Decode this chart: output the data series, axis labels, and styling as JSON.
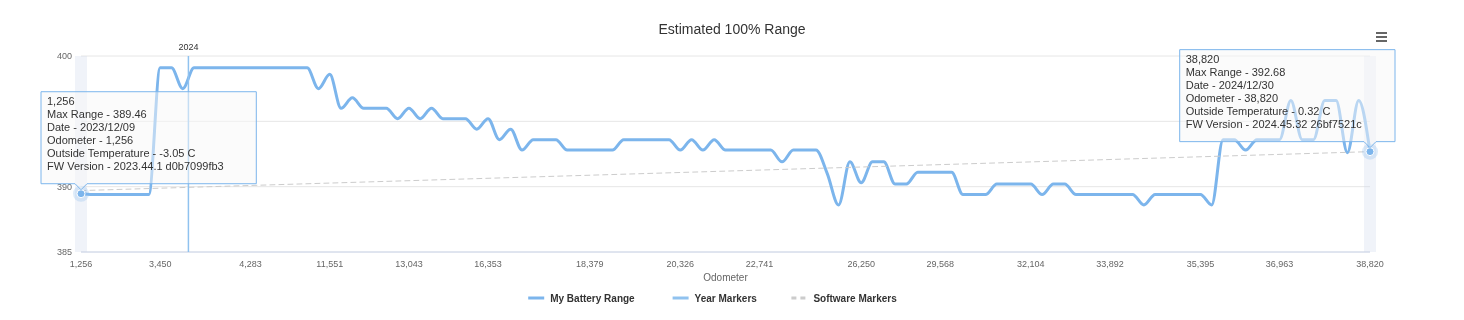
{
  "chart_data": {
    "type": "line",
    "title": "Estimated 100% Range",
    "xlabel": "Odometer",
    "categories": [
      "1,256",
      null,
      null,
      null,
      null,
      null,
      null,
      "3,450",
      null,
      null,
      null,
      null,
      null,
      null,
      null,
      "4,283",
      null,
      null,
      null,
      null,
      null,
      null,
      "11,551",
      null,
      null,
      null,
      null,
      null,
      null,
      "13,043",
      null,
      null,
      null,
      null,
      null,
      null,
      "16,353",
      null,
      null,
      null,
      null,
      null,
      null,
      null,
      null,
      "18,379",
      null,
      null,
      null,
      null,
      null,
      null,
      null,
      "20,326",
      null,
      null,
      null,
      null,
      null,
      null,
      "22,741",
      null,
      null,
      null,
      null,
      null,
      null,
      null,
      null,
      "26,250",
      null,
      null,
      null,
      null,
      null,
      null,
      "29,568",
      null,
      null,
      null,
      null,
      null,
      null,
      null,
      "32,104",
      null,
      null,
      null,
      null,
      null,
      null,
      "33,892",
      null,
      null,
      null,
      null,
      null,
      null,
      null,
      "35,395",
      null,
      null,
      null,
      null,
      null,
      null,
      "36,963",
      null,
      null,
      null,
      null,
      null,
      null,
      null,
      "38,820"
    ],
    "series": [
      {
        "name": "My Battery Range",
        "color": "#7cb5ec",
        "values": [
          389.46,
          389.4,
          389.4,
          389.4,
          389.4,
          389.4,
          389.4,
          399.1,
          399.1,
          397.5,
          399.1,
          399.1,
          399.1,
          399.1,
          399.1,
          399.1,
          399.1,
          399.1,
          399.1,
          399.1,
          399.1,
          397.5,
          398.6,
          396.0,
          396.8,
          396.0,
          396.0,
          396.0,
          395.2,
          396.0,
          395.2,
          396.0,
          395.2,
          395.2,
          395.2,
          394.4,
          395.2,
          393.6,
          394.4,
          392.8,
          393.6,
          393.6,
          393.6,
          392.8,
          392.8,
          392.8,
          392.8,
          392.8,
          393.6,
          393.6,
          393.6,
          393.6,
          393.6,
          392.8,
          393.6,
          392.8,
          393.6,
          392.8,
          392.8,
          392.8,
          392.8,
          392.8,
          391.9,
          392.8,
          392.8,
          392.8,
          391.0,
          388.6,
          391.9,
          390.3,
          391.9,
          391.9,
          390.2,
          390.2,
          391.1,
          391.1,
          391.1,
          391.1,
          389.4,
          389.4,
          389.4,
          390.2,
          390.2,
          390.2,
          390.2,
          389.4,
          390.2,
          390.2,
          389.4,
          389.4,
          389.4,
          389.4,
          389.4,
          389.4,
          388.6,
          389.4,
          389.4,
          389.4,
          389.4,
          389.4,
          388.6,
          393.6,
          393.6,
          392.8,
          393.6,
          393.6,
          393.6,
          396.6,
          393.6,
          393.6,
          396.6,
          396.6,
          392.6,
          396.6,
          392.68
        ]
      },
      {
        "name": "Year Markers",
        "color": "#90c2ef",
        "values": [
          null,
          null,
          null,
          null,
          null,
          null,
          null,
          null,
          null,
          null,
          null,
          null,
          null,
          null,
          null,
          null,
          null,
          null,
          null,
          null,
          null,
          null,
          null,
          null,
          null,
          null,
          null,
          null,
          null,
          null,
          null,
          null,
          null,
          null,
          null,
          null,
          null,
          null,
          null,
          null,
          null,
          null,
          null,
          null,
          null,
          null,
          null,
          null,
          null,
          null,
          null,
          null,
          null,
          null,
          null,
          null,
          null,
          null,
          null,
          null,
          null,
          null,
          null,
          null,
          null,
          null,
          null,
          null,
          null,
          null,
          null,
          null,
          null,
          null,
          null,
          null,
          null,
          null,
          null,
          null,
          null,
          null,
          null,
          null,
          null,
          null,
          null,
          null,
          null,
          null,
          null,
          null,
          null,
          null,
          null,
          null,
          null,
          null,
          null,
          null,
          null,
          null,
          null,
          null,
          null,
          null,
          null,
          null,
          null,
          null,
          null,
          null,
          null,
          null,
          null
        ]
      },
      {
        "name": "Software Markers",
        "color": "#cccccc",
        "line_style": "dashed",
        "x": [
          "1,256",
          "38,820"
        ],
        "values": [
          389.7,
          392.68
        ]
      }
    ],
    "ylim": [
      385,
      400
    ],
    "yticks": [
      385,
      390,
      {
        "value": 395,
        "label": null
      },
      400
    ],
    "grid": "y",
    "legend": "bottom",
    "annotations": [
      "2024",
      {
        "text": "1,256\nMax Range - 389.46\nDate - 2023/12/09\nOdometer - 1,256\nOutside Temperature - -3.05 C\nFW Version - 2023.44.1 d0b7099fb3",
        "x": "1,256",
        "y": 389.46
      },
      {
        "text": "38,820\nMax Range - 392.68\nDate - 2024/12/30\nOdometer - 38,820\nOutside Temperature - 0.32 C\nFW Version - 2024.45.32 26bf7521c",
        "x": "38,820",
        "y": 392.68
      }
    ]
  }
}
